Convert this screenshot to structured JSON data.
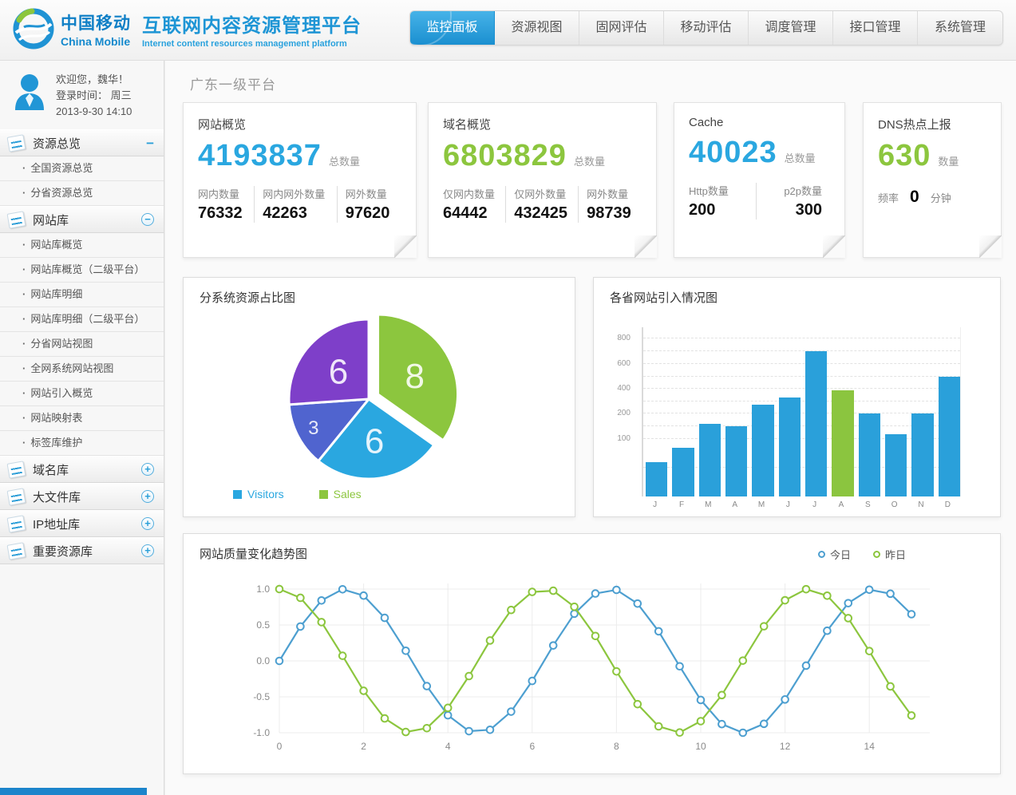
{
  "header": {
    "logo_cn": "中国移动",
    "logo_en": "China Mobile",
    "title": "互联网内容资源管理平台",
    "subtitle": "Internet content resources management platform",
    "tabs": [
      {
        "label": "监控面板",
        "active": true
      },
      {
        "label": "资源视图",
        "active": false
      },
      {
        "label": "固网评估",
        "active": false
      },
      {
        "label": "移动评估",
        "active": false
      },
      {
        "label": "调度管理",
        "active": false
      },
      {
        "label": "接口管理",
        "active": false
      },
      {
        "label": "系统管理",
        "active": false
      }
    ]
  },
  "sidebar": {
    "user": {
      "welcome": "欢迎您，魏华！",
      "login_line": "登录时间：  周三",
      "login_datetime": "2013-9-30   14:10"
    },
    "menu": [
      {
        "type": "group",
        "label": "资源总览",
        "toggle": "minus-plain"
      },
      {
        "type": "item",
        "label": "全国资源总览"
      },
      {
        "type": "item",
        "label": "分省资源总览"
      },
      {
        "type": "group",
        "label": "网站库",
        "toggle": "minus-circle"
      },
      {
        "type": "item",
        "label": "网站库概览"
      },
      {
        "type": "item",
        "label": "网站库概览（二级平台）"
      },
      {
        "type": "item",
        "label": "网站库明细"
      },
      {
        "type": "item",
        "label": "网站库明细（二级平台）"
      },
      {
        "type": "item",
        "label": "分省网站视图"
      },
      {
        "type": "item",
        "label": "全网系统网站视图"
      },
      {
        "type": "item",
        "label": "网站引入概览"
      },
      {
        "type": "item",
        "label": "网站映射表"
      },
      {
        "type": "item",
        "label": "标签库维护"
      },
      {
        "type": "group",
        "label": "域名库",
        "toggle": "plus-circle"
      },
      {
        "type": "group",
        "label": "大文件库",
        "toggle": "plus-circle"
      },
      {
        "type": "group",
        "label": "IP地址库",
        "toggle": "plus-circle"
      },
      {
        "type": "group",
        "label": "重要资源库",
        "toggle": "plus-circle"
      }
    ]
  },
  "main": {
    "page_title": "广东一级平台",
    "stat_cards": [
      {
        "title": "网站概览",
        "big": "4193837",
        "big_color": "#2aa7e0",
        "big_label": "总数量",
        "subs": [
          {
            "label": "网内数量",
            "value": "76332"
          },
          {
            "label": "网内网外数量",
            "value": "42263"
          },
          {
            "label": "网外数量",
            "value": "97620"
          }
        ]
      },
      {
        "title": "域名概览",
        "big": "6803829",
        "big_color": "#8cc63e",
        "big_label": "总数量",
        "subs": [
          {
            "label": "仅网内数量",
            "value": "64442"
          },
          {
            "label": "仅网外数量",
            "value": "432425"
          },
          {
            "label": "网外数量",
            "value": "98739"
          }
        ]
      },
      {
        "title": "Cache",
        "big": "40023",
        "big_color": "#2aa7e0",
        "big_label": "总数量",
        "subs": [
          {
            "label": "Http数量",
            "value": "200"
          },
          {
            "label": "p2p数量",
            "value": "300"
          }
        ]
      },
      {
        "title": "DNS热点上报",
        "big": "630",
        "big_color": "#8cc63e",
        "big_label": "数量",
        "freq": {
          "label": "频率",
          "value": "0",
          "unit": "分钟"
        }
      }
    ]
  },
  "chart_data": [
    {
      "type": "pie",
      "title": "分系统资源占比图",
      "slices": [
        {
          "value": 8,
          "color": "#8cc63e",
          "exploded": true
        },
        {
          "value": 6,
          "color": "#2aa7e0",
          "exploded": false
        },
        {
          "value": 3,
          "color": "#5064cf",
          "exploded": false
        },
        {
          "value": 6,
          "color": "#7e3fc9",
          "exploded": false
        }
      ],
      "legend": [
        {
          "label": "Visitors",
          "color": "#2aa7e0"
        },
        {
          "label": "Sales",
          "color": "#8cc63e"
        }
      ]
    },
    {
      "type": "bar",
      "title": "各省网站引入情况图",
      "categories": [
        "J",
        "F",
        "M",
        "A",
        "M",
        "J",
        "J",
        "A",
        "S",
        "O",
        "N",
        "D"
      ],
      "values": [
        60,
        85,
        160,
        150,
        270,
        330,
        700,
        385,
        200,
        120,
        200,
        500
      ],
      "bar_color": "#2aa0da",
      "highlight_index": 7,
      "highlight_color": "#8bc53f",
      "yticks": [
        800,
        600,
        400,
        200,
        100
      ]
    },
    {
      "type": "line",
      "title": "网站质量变化趋势图",
      "x_start": 0,
      "x_step": 0.5,
      "xticks": [
        0,
        2,
        4,
        6,
        8,
        10,
        12,
        14
      ],
      "yticks": [
        "1.0",
        "0.5",
        "0.0",
        "-0.5",
        "-1.0"
      ],
      "ylim": [
        -1,
        1
      ],
      "series": [
        {
          "name": "今日",
          "color": "#4d9fd0",
          "values": [
            0.0,
            0.479,
            0.841,
            0.997,
            0.909,
            0.599,
            0.141,
            -0.351,
            -0.757,
            -0.978,
            -0.959,
            -0.706,
            -0.279,
            0.215,
            0.657,
            0.938,
            0.989,
            0.798,
            0.412,
            -0.075,
            -0.544,
            -0.88,
            -1.0,
            -0.876,
            -0.537,
            -0.066,
            0.42,
            0.804,
            0.991,
            0.935,
            0.65
          ]
        },
        {
          "name": "昨日",
          "color": "#8cc63e",
          "values": [
            1.0,
            0.878,
            0.54,
            0.071,
            -0.416,
            -0.801,
            -0.99,
            -0.936,
            -0.654,
            -0.211,
            0.284,
            0.709,
            0.96,
            0.977,
            0.754,
            0.347,
            -0.146,
            -0.602,
            -0.911,
            -0.997,
            -0.839,
            -0.476,
            0.004,
            0.482,
            0.844,
            0.998,
            0.908,
            0.595,
            0.137,
            -0.355,
            -0.76
          ]
        }
      ]
    }
  ]
}
